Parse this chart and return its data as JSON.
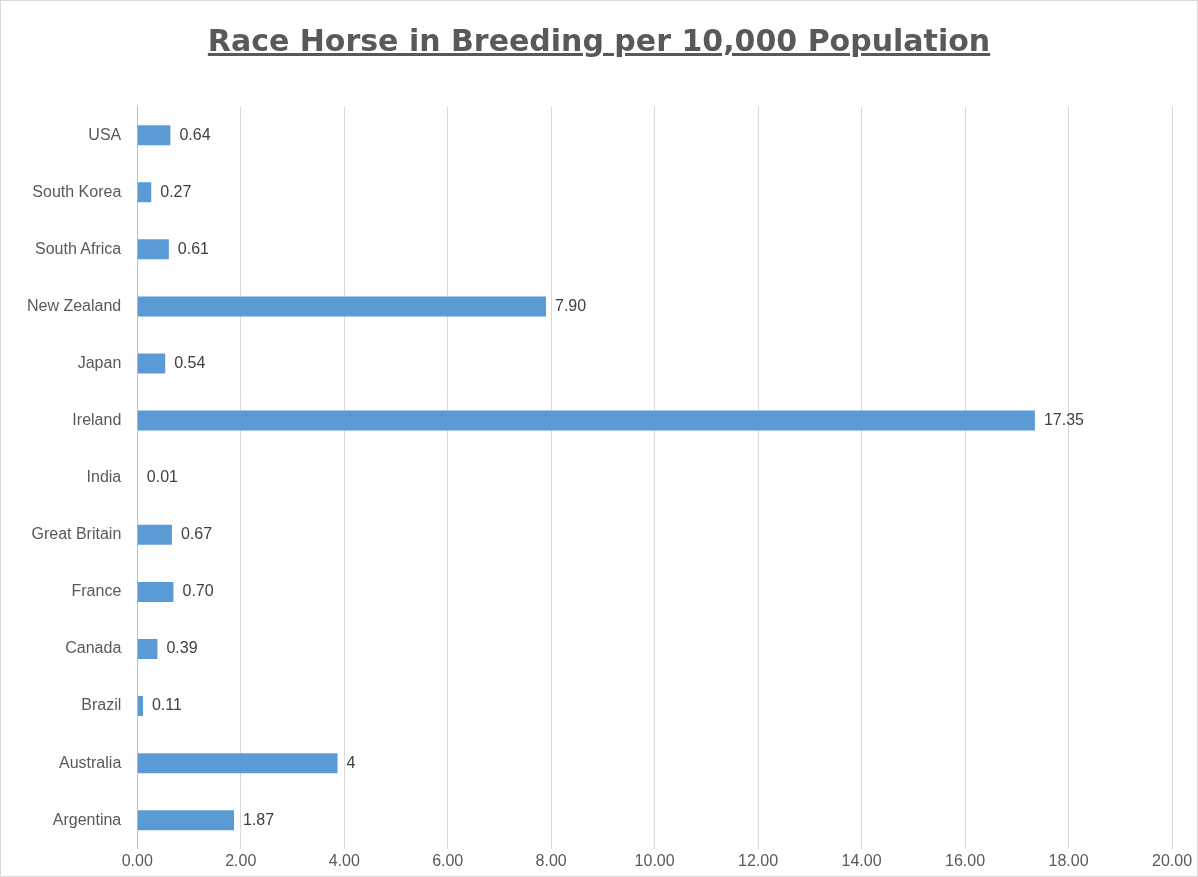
{
  "chart_data": {
    "type": "bar",
    "orientation": "horizontal",
    "title": "Race Horse in Breeding per 10,000 Population",
    "categories": [
      "USA",
      "South Korea",
      "South Africa",
      "New Zealand",
      "Japan",
      "Ireland",
      "India",
      "Great Britain",
      "France",
      "Canada",
      "Brazil",
      "Australia",
      "Argentina"
    ],
    "values": [
      0.64,
      0.27,
      0.61,
      7.9,
      0.54,
      17.35,
      0.01,
      0.67,
      0.7,
      0.39,
      0.11,
      3.87,
      1.87
    ],
    "value_labels": [
      "0.64",
      "0.27",
      "0.61",
      "7.90",
      "0.54",
      "17.35",
      "0.01",
      "0.67",
      "0.70",
      "0.39",
      "0.11",
      "4",
      "1.87"
    ],
    "color": "#5b9bd5",
    "xlim": [
      0,
      20
    ],
    "xticks": [
      {
        "value": 0,
        "label": "0.00"
      },
      {
        "value": 2,
        "label": "2.00"
      },
      {
        "value": 4,
        "label": "4.00"
      },
      {
        "value": 6,
        "label": "6.00"
      },
      {
        "value": 8,
        "label": "8.00"
      },
      {
        "value": 10,
        "label": "10.00"
      },
      {
        "value": 12,
        "label": "12.00"
      },
      {
        "value": 14,
        "label": "14.00"
      },
      {
        "value": 16,
        "label": "16.00"
      },
      {
        "value": 18,
        "label": "18.00"
      },
      {
        "value": 20,
        "label": "20.00"
      }
    ],
    "grid": "x",
    "legend": false
  }
}
